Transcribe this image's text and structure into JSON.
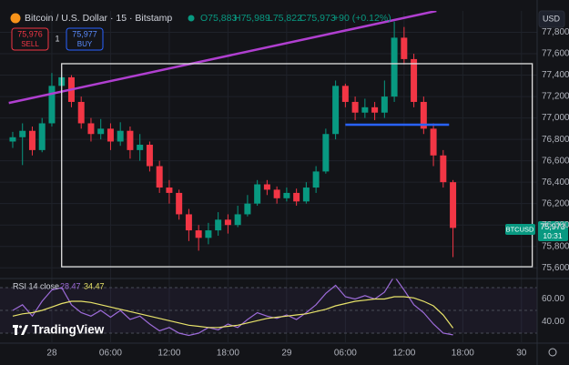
{
  "header": {
    "symbol": "Bitcoin / U.S. Dollar · 15 · Bitstamp",
    "open": "O75,883",
    "high": "H75,989",
    "low": "L75,822",
    "close": "C75,973",
    "change": "+90 (+0.12%)",
    "currency": "USD"
  },
  "trade": {
    "sell_price": "75,976",
    "sell": "SELL",
    "quantity": "1",
    "buy_price": "75,977",
    "buy": "BUY"
  },
  "last_price": {
    "symbol": "BTCUSD",
    "price": "75,973",
    "countdown": "10:31"
  },
  "logo": "TradingView",
  "chart_data": {
    "type": "candlestick",
    "up_color": "#089981",
    "down_color": "#f23645",
    "grid": true,
    "x": [
      -4,
      -3,
      -2,
      -1,
      0,
      1,
      2,
      3,
      4,
      5,
      6,
      7,
      8,
      9,
      10,
      11,
      12,
      13,
      14,
      15,
      16,
      17,
      18,
      19,
      20,
      21,
      22,
      23,
      24,
      25,
      26,
      27,
      28,
      29,
      30,
      31,
      32,
      33,
      34,
      35,
      36,
      37,
      38,
      39,
      40,
      41
    ],
    "open": [
      76780,
      76820,
      76880,
      76700,
      76950,
      77300,
      77380,
      77150,
      76950,
      76850,
      76900,
      76780,
      76880,
      76700,
      76750,
      76550,
      76350,
      76300,
      76100,
      75950,
      75880,
      75950,
      76050,
      76000,
      76100,
      76200,
      76380,
      76330,
      76250,
      76300,
      76220,
      76350,
      76500,
      76850,
      77300,
      77150,
      77050,
      77100,
      77050,
      77200,
      77750,
      77550,
      77150,
      76900,
      76650,
      76400
    ],
    "high": [
      76870,
      76950,
      76920,
      77000,
      77420,
      77430,
      77400,
      77200,
      77000,
      76990,
      76950,
      76960,
      76920,
      76850,
      76780,
      76600,
      76420,
      76330,
      76150,
      76000,
      76020,
      76120,
      76100,
      76180,
      76280,
      76420,
      76420,
      76360,
      76350,
      76340,
      76400,
      76550,
      76900,
      77350,
      77320,
      77200,
      77180,
      77150,
      77350,
      77900,
      77850,
      77600,
      77200,
      76950,
      76700,
      76420
    ],
    "low": [
      76720,
      76560,
      76650,
      76680,
      76920,
      77250,
      77100,
      76900,
      76780,
      76800,
      76700,
      76740,
      76620,
      76600,
      76500,
      76300,
      76200,
      76050,
      75850,
      75760,
      75820,
      75900,
      75920,
      75980,
      76080,
      76180,
      76280,
      76200,
      76220,
      76180,
      76200,
      76300,
      76480,
      76800,
      77100,
      76980,
      77000,
      76980,
      77000,
      77150,
      77500,
      77100,
      76850,
      76550,
      76350,
      75700
    ],
    "close": [
      76820,
      76880,
      76700,
      76950,
      77300,
      77380,
      77150,
      76950,
      76850,
      76900,
      76780,
      76880,
      76700,
      76750,
      76550,
      76350,
      76300,
      76100,
      75950,
      75880,
      75950,
      76050,
      76000,
      76100,
      76200,
      76380,
      76330,
      76250,
      76300,
      76220,
      76350,
      76500,
      76850,
      77300,
      77150,
      77050,
      77100,
      77050,
      77200,
      77750,
      77550,
      77150,
      76900,
      76650,
      76400,
      75973
    ],
    "ylim": [
      75500,
      78000
    ],
    "yticks": [
      {
        "value": 75600,
        "label": "75,600"
      },
      {
        "value": 75800,
        "label": "75,800"
      },
      {
        "value": 76000,
        "label": "76,000"
      },
      {
        "value": 76200,
        "label": "76,200"
      },
      {
        "value": 76400,
        "label": "76,400"
      },
      {
        "value": 76600,
        "label": "76,600"
      },
      {
        "value": 76800,
        "label": "76,800"
      },
      {
        "value": 77000,
        "label": "77,000"
      },
      {
        "value": 77200,
        "label": "77,200"
      },
      {
        "value": 77400,
        "label": "77,400"
      },
      {
        "value": 77600,
        "label": "77,600"
      },
      {
        "value": 77800,
        "label": "77,800"
      }
    ],
    "xlim": [
      -5.3,
      49.6
    ],
    "xticks": [
      {
        "value": 0,
        "label": "28"
      },
      {
        "value": 6,
        "label": "06:00"
      },
      {
        "value": 12,
        "label": "12:00"
      },
      {
        "value": 18,
        "label": "18:00"
      },
      {
        "value": 24,
        "label": "29"
      },
      {
        "value": 30,
        "label": "06:00"
      },
      {
        "value": 36,
        "label": "12:00"
      },
      {
        "value": 42,
        "label": "18:00"
      },
      {
        "value": 48,
        "label": "30"
      }
    ],
    "drawings": {
      "trendline": {
        "color": "#b03fd0",
        "x": [
          -4.4,
          39.3
        ],
        "y": [
          77140,
          78000
        ]
      },
      "rectangle": {
        "color": "#e0e0e0",
        "x": [
          1.0,
          49.1
        ],
        "y": [
          77507,
          75610
        ]
      },
      "level": {
        "color": "#2962ff",
        "x": [
          30.0,
          40.6
        ],
        "y": [
          76937,
          76937
        ]
      }
    },
    "rsi": {
      "title": "RSI 14 close",
      "ylim": [
        22,
        78
      ],
      "yticks": [
        {
          "value": 40,
          "label": "40.00"
        },
        {
          "value": 60,
          "label": "60.00"
        }
      ],
      "levels": [
        30,
        50,
        70
      ],
      "series": [
        {
          "color": "#9c6bd8",
          "values": [
            50,
            55,
            45,
            58,
            68,
            70,
            55,
            48,
            45,
            50,
            44,
            50,
            42,
            45,
            38,
            32,
            35,
            30,
            28,
            30,
            35,
            33,
            38,
            35,
            42,
            48,
            45,
            43,
            46,
            42,
            48,
            55,
            65,
            72,
            62,
            60,
            63,
            60,
            66,
            80,
            68,
            55,
            48,
            38,
            30,
            28.47
          ]
        },
        {
          "color": "#e8e36a",
          "values": [
            45,
            47,
            48,
            50,
            53,
            56,
            58,
            58,
            57,
            55,
            53,
            51,
            49,
            47,
            45,
            43,
            41,
            39,
            37,
            36,
            35,
            35,
            36,
            37,
            39,
            41,
            43,
            44,
            45,
            46,
            47,
            49,
            51,
            54,
            56,
            58,
            59,
            60,
            60,
            62,
            62,
            61,
            58,
            54,
            46,
            34.47
          ]
        }
      ]
    }
  }
}
